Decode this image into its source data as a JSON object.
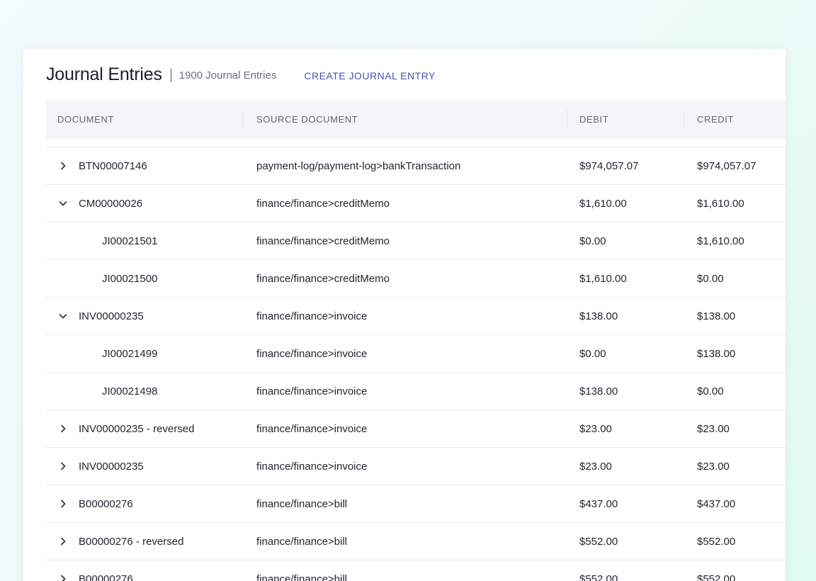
{
  "header": {
    "title": "Journal Entries",
    "count": "1900 Journal Entries",
    "create_label": "CREATE JOURNAL ENTRY"
  },
  "table": {
    "columns": [
      "DOCUMENT",
      "SOURCE DOCUMENT",
      "DEBIT",
      "CREDIT"
    ],
    "rows": [
      {
        "document": "BTN00007146",
        "source": "payment-log/payment-log>bankTransaction",
        "debit": "$974,057.07",
        "credit": "$974,057.07",
        "level": 0,
        "toggle": "collapsed"
      },
      {
        "document": "CM00000026",
        "source": "finance/finance>creditMemo",
        "debit": "$1,610.00",
        "credit": "$1,610.00",
        "level": 0,
        "toggle": "expanded"
      },
      {
        "document": "JI00021501",
        "source": "finance/finance>creditMemo",
        "debit": "$0.00",
        "credit": "$1,610.00",
        "level": 1,
        "toggle": "none"
      },
      {
        "document": "JI00021500",
        "source": "finance/finance>creditMemo",
        "debit": "$1,610.00",
        "credit": "$0.00",
        "level": 1,
        "toggle": "none"
      },
      {
        "document": "INV00000235",
        "source": "finance/finance>invoice",
        "debit": "$138.00",
        "credit": "$138.00",
        "level": 0,
        "toggle": "expanded"
      },
      {
        "document": "JI00021499",
        "source": "finance/finance>invoice",
        "debit": "$0.00",
        "credit": "$138.00",
        "level": 1,
        "toggle": "none"
      },
      {
        "document": "JI00021498",
        "source": "finance/finance>invoice",
        "debit": "$138.00",
        "credit": "$0.00",
        "level": 1,
        "toggle": "none"
      },
      {
        "document": "INV00000235 - reversed",
        "source": "finance/finance>invoice",
        "debit": "$23.00",
        "credit": "$23.00",
        "level": 0,
        "toggle": "collapsed"
      },
      {
        "document": "INV00000235",
        "source": "finance/finance>invoice",
        "debit": "$23.00",
        "credit": "$23.00",
        "level": 0,
        "toggle": "collapsed"
      },
      {
        "document": "B00000276",
        "source": "finance/finance>bill",
        "debit": "$437.00",
        "credit": "$437.00",
        "level": 0,
        "toggle": "collapsed"
      },
      {
        "document": "B00000276 - reversed",
        "source": "finance/finance>bill",
        "debit": "$552.00",
        "credit": "$552.00",
        "level": 0,
        "toggle": "collapsed"
      },
      {
        "document": "B00000276",
        "source": "finance/finance>bill",
        "debit": "$552.00",
        "credit": "$552.00",
        "level": 0,
        "toggle": "collapsed"
      }
    ]
  },
  "icons": {
    "collapsed": "chevron-right-icon",
    "expanded": "chevron-down-icon"
  },
  "colors": {
    "accent": "#4a4fb2",
    "header_bg": "#f4f5f8"
  }
}
